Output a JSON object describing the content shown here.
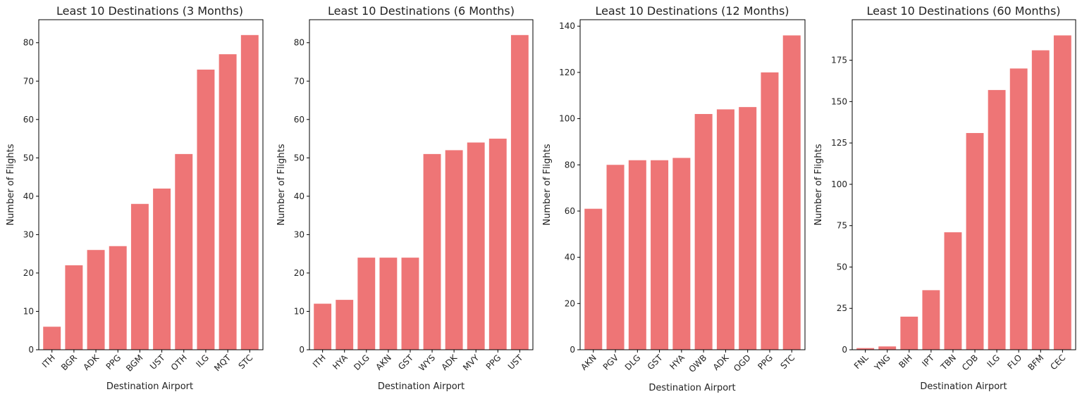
{
  "colors": {
    "bar": "#ee7576",
    "axis": "#000000",
    "text": "#222222"
  },
  "chart_data": [
    {
      "type": "bar",
      "title": "Least 10 Destinations (3 Months)",
      "xlabel": "Destination Airport",
      "ylabel": "Number of Flights",
      "categories": [
        "ITH",
        "BGR",
        "ADK",
        "PPG",
        "BGM",
        "UST",
        "OTH",
        "ILG",
        "MQT",
        "STC"
      ],
      "values": [
        6,
        22,
        26,
        27,
        38,
        42,
        51,
        73,
        77,
        82
      ],
      "ylim": [
        0,
        86
      ],
      "yticks": [
        0,
        10,
        20,
        30,
        40,
        50,
        60,
        70,
        80
      ],
      "grid": false
    },
    {
      "type": "bar",
      "title": "Least 10 Destinations (6 Months)",
      "xlabel": "Destination Airport",
      "ylabel": "Number of Flights",
      "categories": [
        "ITH",
        "HYA",
        "DLG",
        "AKN",
        "GST",
        "WYS",
        "ADK",
        "MVY",
        "PPG",
        "UST"
      ],
      "values": [
        12,
        13,
        24,
        24,
        24,
        51,
        52,
        54,
        55,
        82
      ],
      "ylim": [
        0,
        86
      ],
      "yticks": [
        0,
        10,
        20,
        30,
        40,
        50,
        60,
        70,
        80
      ],
      "grid": false
    },
    {
      "type": "bar",
      "title": "Least 10 Destinations (12 Months)",
      "xlabel": "Destination Airport",
      "ylabel": "Number of Flights",
      "categories": [
        "AKN",
        "PGV",
        "DLG",
        "GST",
        "HYA",
        "OWB",
        "ADK",
        "OGD",
        "PPG",
        "STC"
      ],
      "values": [
        61,
        80,
        82,
        82,
        83,
        102,
        104,
        105,
        120,
        136
      ],
      "ylim": [
        0,
        142.8
      ],
      "yticks": [
        0,
        20,
        40,
        60,
        80,
        100,
        120,
        140
      ],
      "grid": false
    },
    {
      "type": "bar",
      "title": "Least 10 Destinations (60 Months)",
      "xlabel": "Destination Airport",
      "ylabel": "Number of Flights",
      "categories": [
        "FNL",
        "YNG",
        "BIH",
        "IPT",
        "TBN",
        "CDB",
        "ILG",
        "FLO",
        "BFM",
        "CEC"
      ],
      "values": [
        1,
        2,
        20,
        36,
        71,
        131,
        157,
        170,
        181,
        190
      ],
      "ylim": [
        0,
        199.5
      ],
      "yticks": [
        0,
        25,
        50,
        75,
        100,
        125,
        150,
        175
      ],
      "grid": false
    }
  ]
}
